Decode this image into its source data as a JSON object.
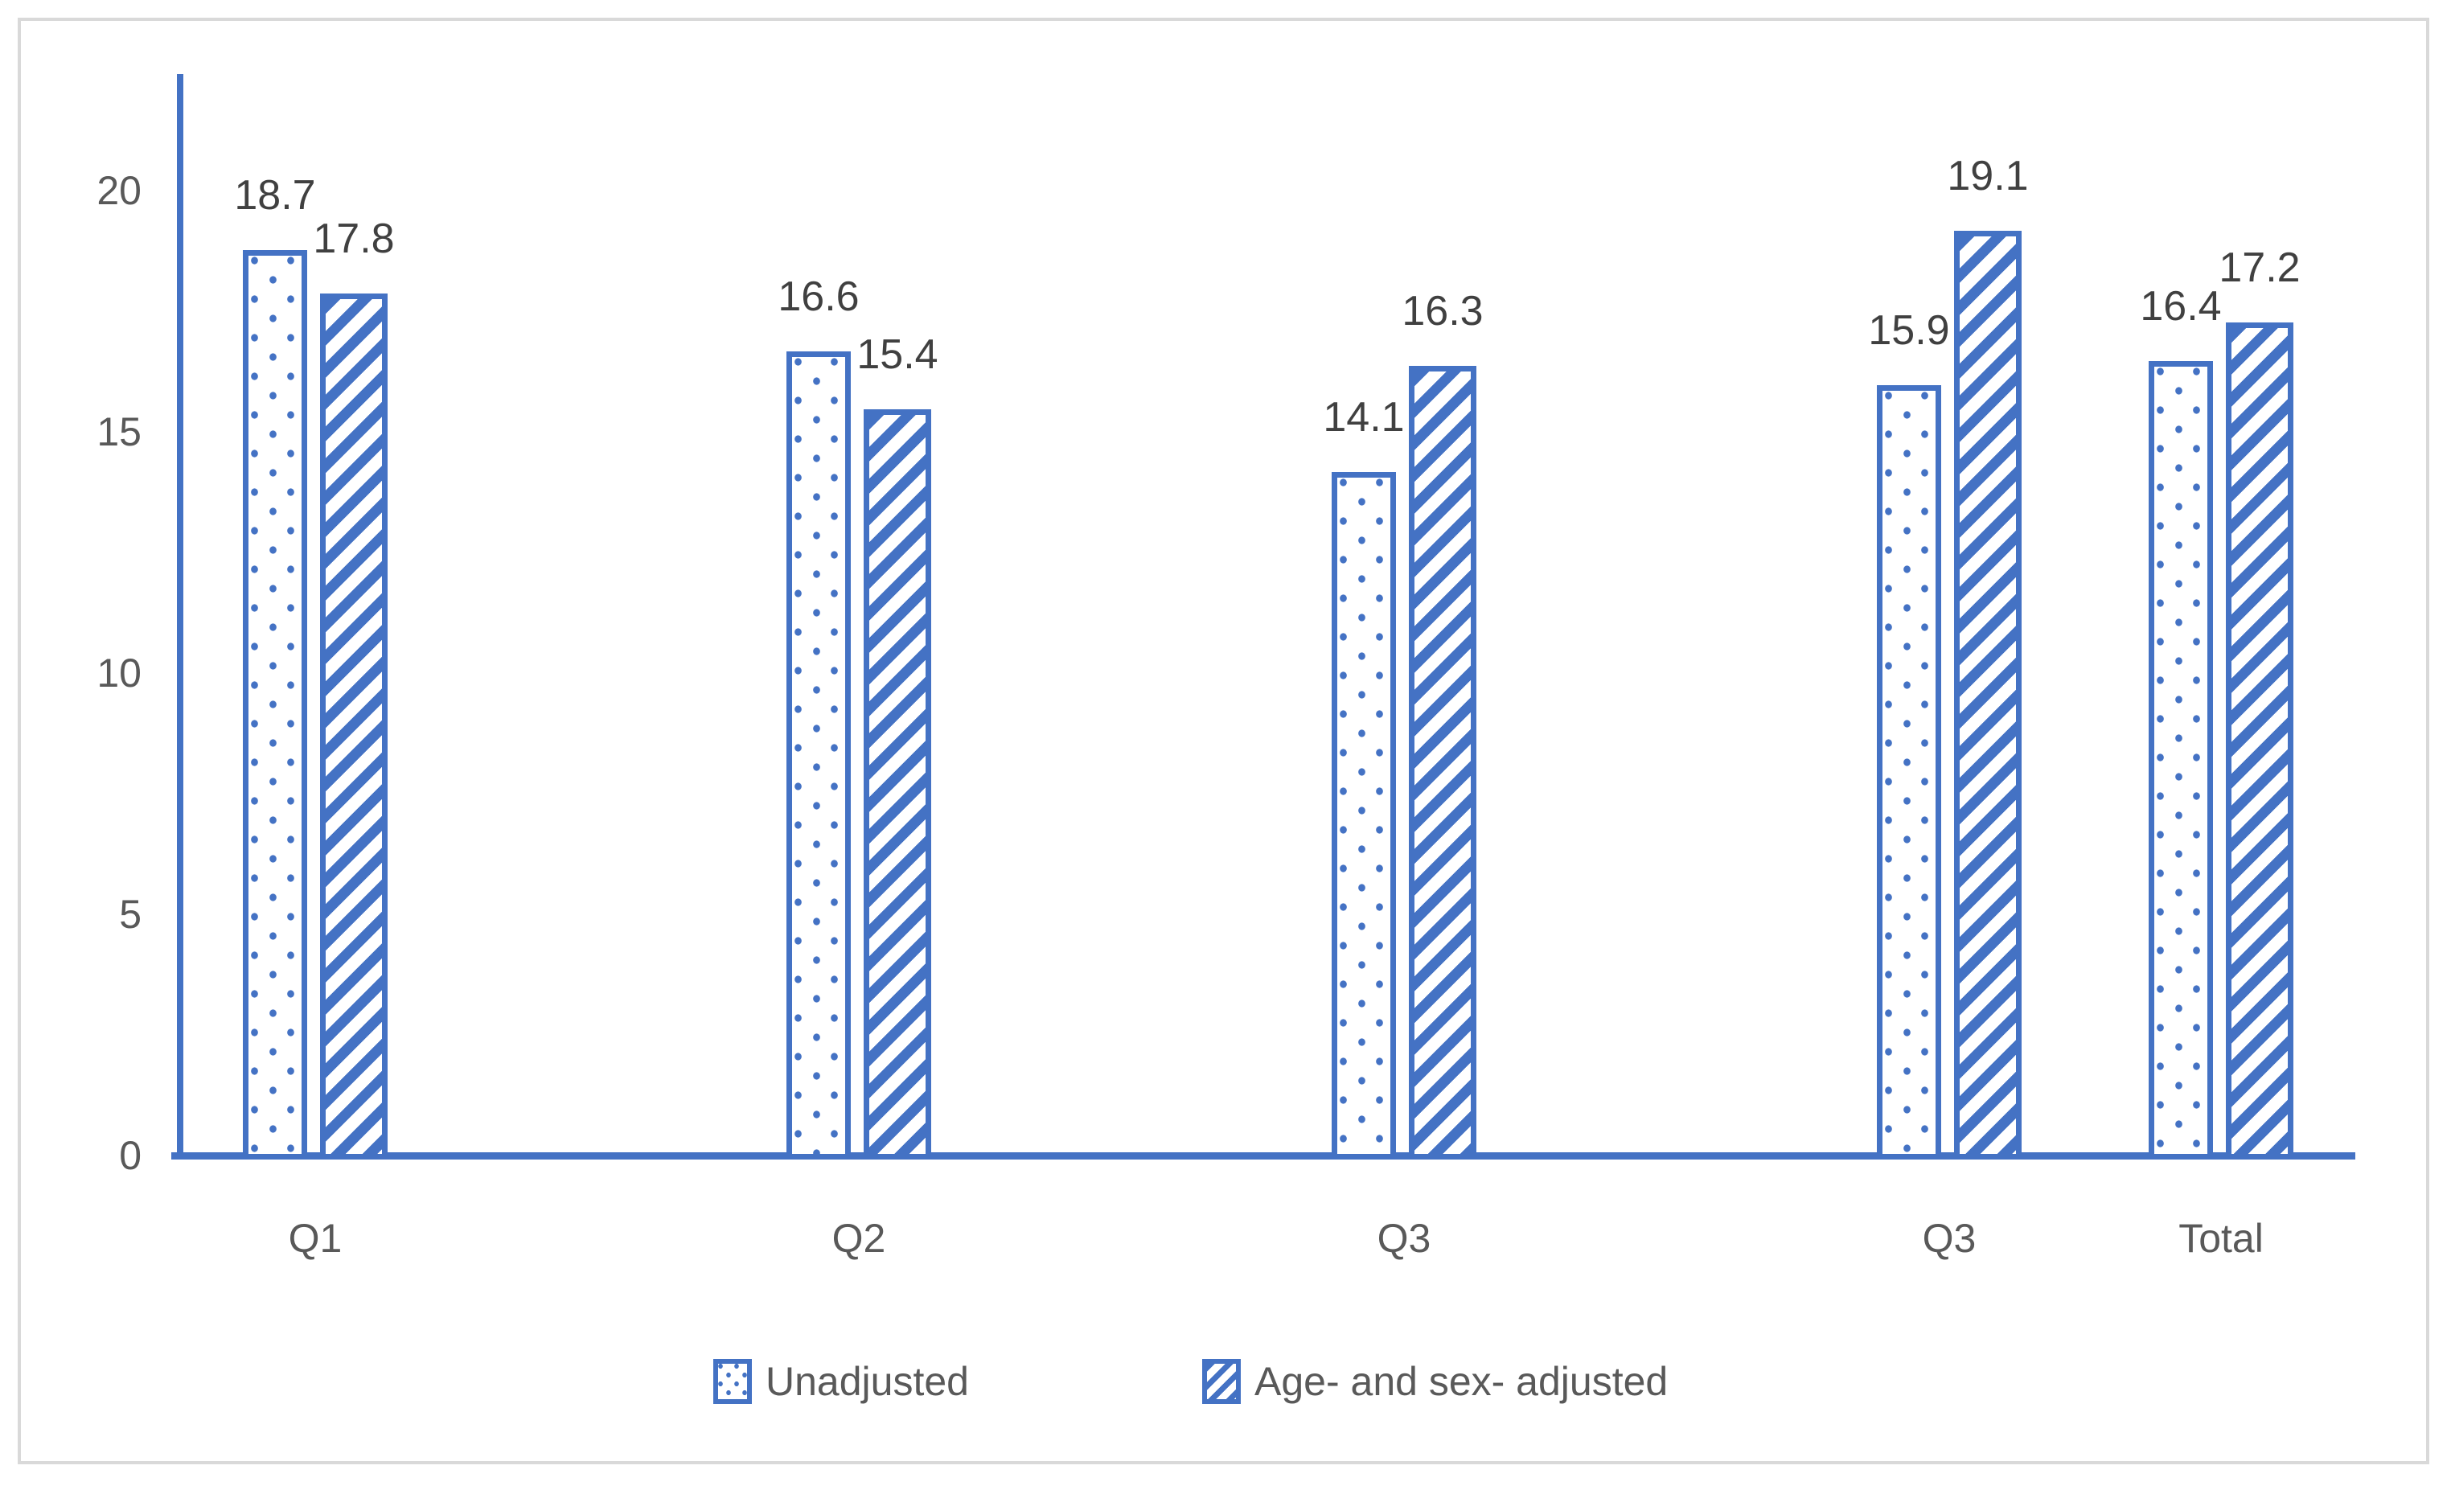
{
  "chart_data": {
    "type": "bar",
    "categories": [
      "Q1",
      "Q2",
      "Q3",
      "Q3",
      "Total"
    ],
    "series": [
      {
        "name": "Unadjusted",
        "pattern": "dotted",
        "values": [
          18.7,
          16.6,
          14.1,
          15.9,
          16.4
        ]
      },
      {
        "name": "Age- and sex- adjusted",
        "pattern": "striped",
        "values": [
          17.8,
          15.4,
          16.3,
          19.1,
          17.2
        ]
      }
    ],
    "data_labels": [
      "18.7",
      "17.8",
      "16.6",
      "15.4",
      "14.1",
      "16.3",
      "15.9",
      "19.1",
      "16.4",
      "17.2"
    ],
    "title": "",
    "xlabel": "",
    "ylabel": "",
    "y_ticks": [
      0,
      5,
      10,
      15,
      20
    ],
    "ylim": [
      0,
      22
    ],
    "grid": false,
    "legend_position": "bottom-center",
    "colors": {
      "bar": "#4472C4",
      "axis_line": "#4472C4",
      "data_label_text": "#404040",
      "axis_text": "#595959",
      "frame_border": "#D9D9D9",
      "background": "#FFFFFF"
    }
  }
}
